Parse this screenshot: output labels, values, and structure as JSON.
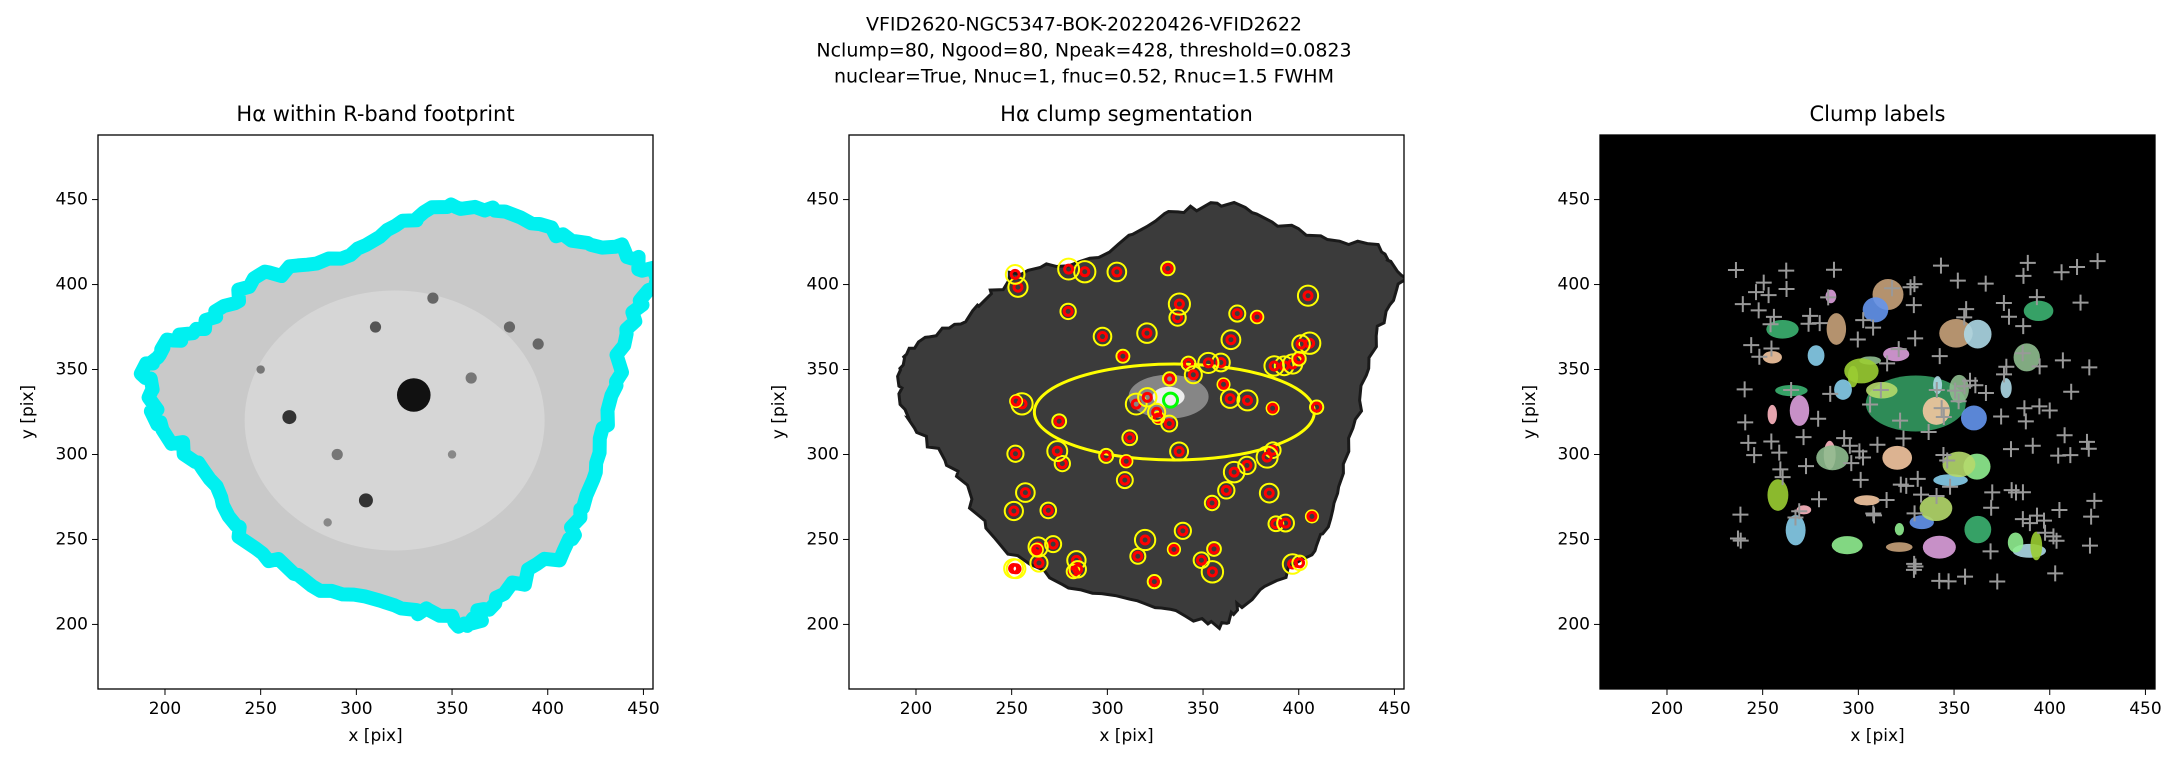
{
  "suptitle": [
    "VFID2620-NGC5347-BOK-20220426-VFID2622",
    "Nclump=80, Ngood=80, Npeak=428, threshold=0.0823",
    "nuclear=True, Nnuc=1, fnuc=0.52, Rnuc=1.5 FWHM"
  ],
  "chart_data": [
    {
      "type": "image",
      "style": "footprint",
      "title": "Hα within R-band footprint",
      "xlabel": "x [pix]",
      "ylabel": "y [pix]",
      "xlim": [
        165,
        455
      ],
      "ylim": [
        162,
        488
      ],
      "xticks": [
        200,
        250,
        300,
        350,
        400,
        450
      ],
      "yticks": [
        200,
        250,
        300,
        350,
        400,
        450
      ]
    },
    {
      "type": "image",
      "style": "segmentation",
      "title": "Hα clump segmentation",
      "xlabel": "x [pix]",
      "ylabel": "y [pix]",
      "xlim": [
        165,
        455
      ],
      "ylim": [
        162,
        488
      ],
      "xticks": [
        200,
        250,
        300,
        350,
        400,
        450
      ],
      "yticks": [
        200,
        250,
        300,
        350,
        400,
        450
      ]
    },
    {
      "type": "image",
      "style": "labels",
      "title": "Clump labels",
      "xlabel": "x [pix]",
      "ylabel": "y [pix]",
      "xlim": [
        165,
        455
      ],
      "ylim": [
        162,
        488
      ],
      "xticks": [
        200,
        250,
        300,
        350,
        400,
        450
      ],
      "yticks": [
        200,
        250,
        300,
        350,
        400,
        450
      ]
    }
  ]
}
